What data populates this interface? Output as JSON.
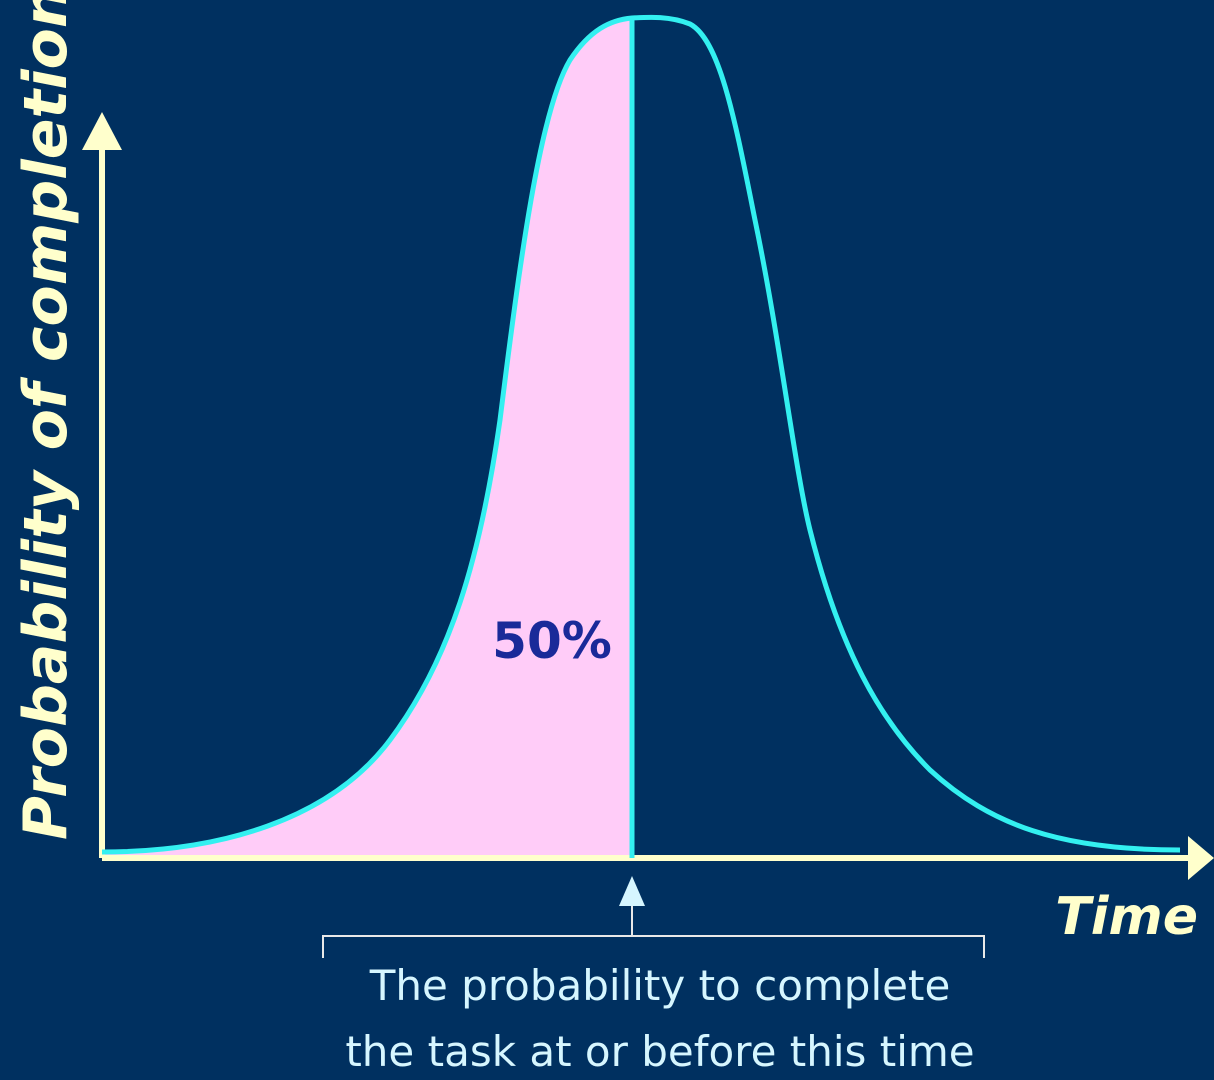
{
  "diagram": {
    "y_axis_label": "Probability of completion",
    "x_axis_label": "Time",
    "shaded_area_label": "50%",
    "caption": {
      "line1": "The probability to complete",
      "line2": "the task at or before this time"
    },
    "colors": {
      "background": "#003060",
      "axis": "#ffffcc",
      "curve": "#33f0f0",
      "shaded_area": "#ffccf8",
      "percent_text": "#1a2a99",
      "caption_text": "#d6f6ff",
      "bracket": "#e8e8e8"
    }
  }
}
